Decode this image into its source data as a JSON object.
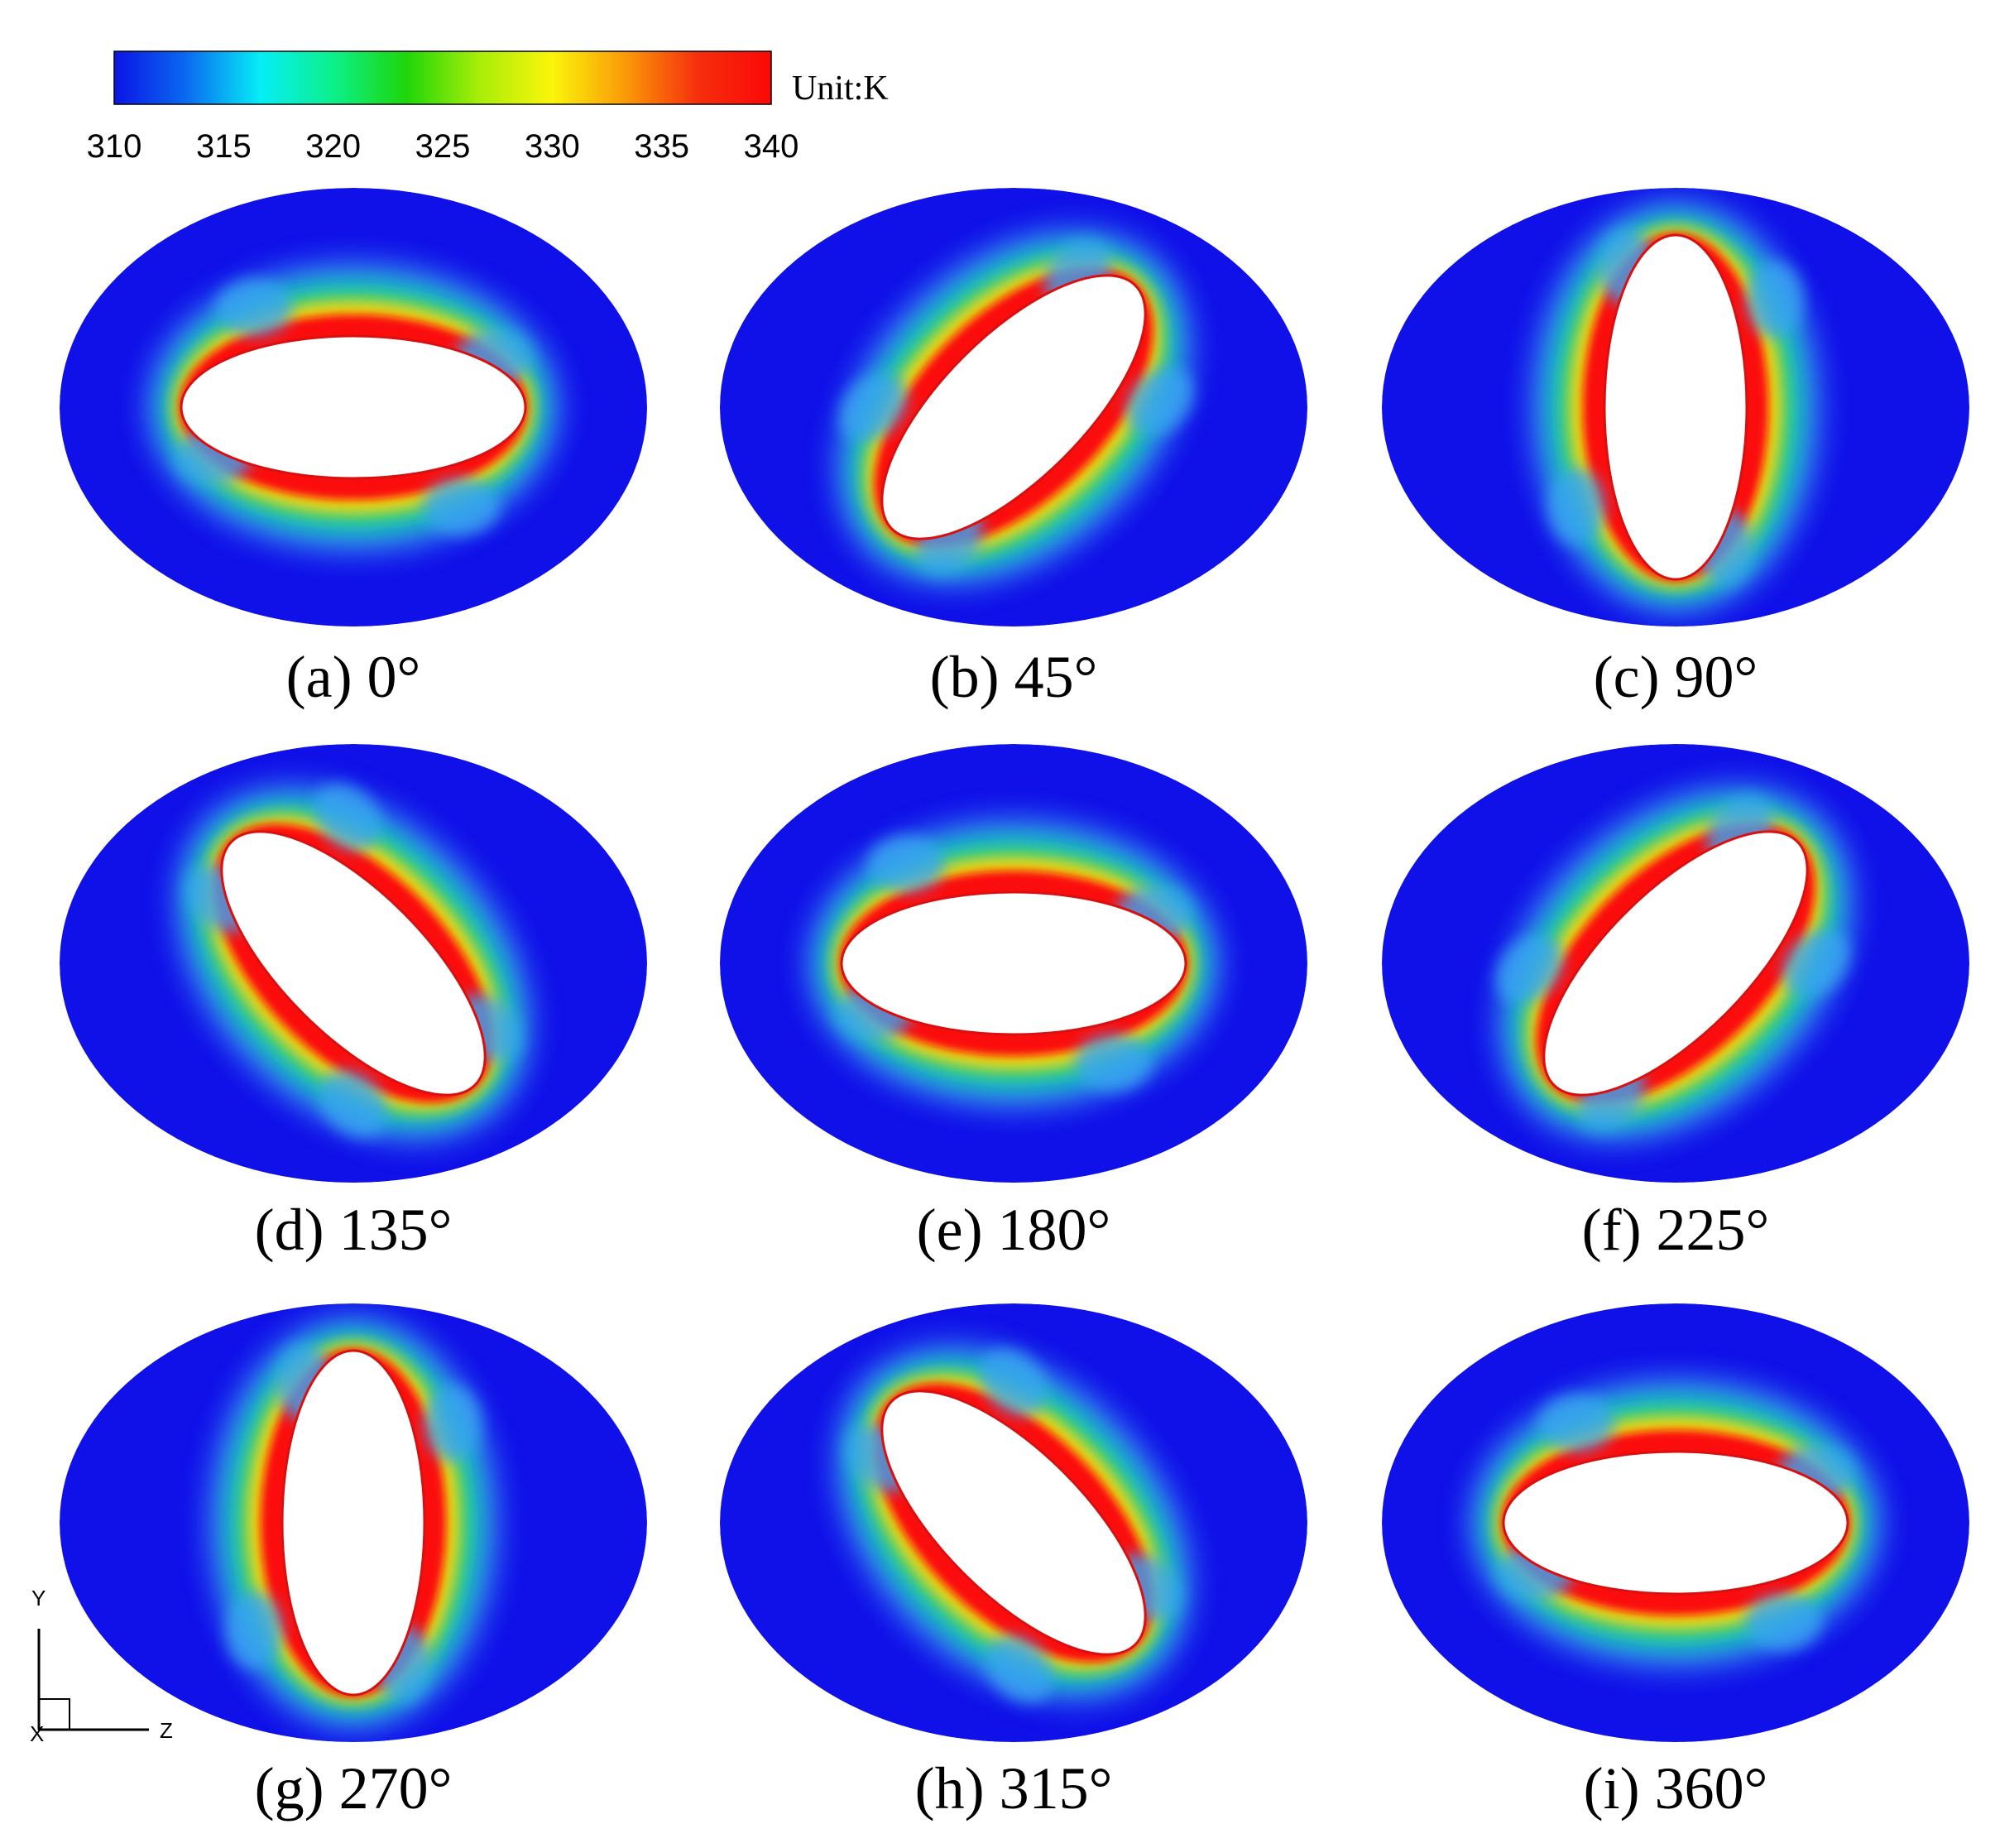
{
  "colorbar": {
    "unit_label": "Unit:K",
    "ticks": [
      "310",
      "315",
      "320",
      "325",
      "330",
      "335",
      "340"
    ],
    "min": 310,
    "max": 340,
    "gradient_colors": [
      "#0a14e6",
      "#0a6cf0",
      "#06eef6",
      "#0cf08a",
      "#1ed60a",
      "#a8ee08",
      "#fbf50a",
      "#fa9a08",
      "#f62e0c",
      "#fb0808"
    ]
  },
  "colors": {
    "background": "#1010e8",
    "cool_halo": "#3aa4f2",
    "mid": "#10d29a",
    "warm": "#f2d410",
    "hot": "#fb0808",
    "cylinder": "#ffffff"
  },
  "panels": [
    {
      "caption": "(a) 0°",
      "angle": 0
    },
    {
      "caption": "(b) 45°",
      "angle": 45
    },
    {
      "caption": "(c) 90°",
      "angle": 90
    },
    {
      "caption": "(d) 135°",
      "angle": 135
    },
    {
      "caption": "(e) 180°",
      "angle": 180
    },
    {
      "caption": "(f) 225°",
      "angle": 225
    },
    {
      "caption": "(g) 270°",
      "angle": 270
    },
    {
      "caption": "(h) 315°",
      "angle": 315
    },
    {
      "caption": "(i) 360°",
      "angle": 360
    }
  ],
  "axes": {
    "y_label": "Y",
    "z_label": "Z",
    "x_label": "X"
  }
}
